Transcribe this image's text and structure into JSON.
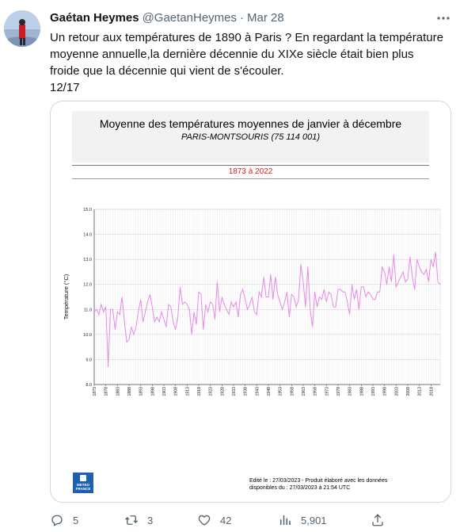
{
  "tweet": {
    "author_name": "Gaétan Heymes",
    "handle": "@GaetanHeymes",
    "separator": "·",
    "date": "Mar 28",
    "more_icon": "more-icon",
    "text_lines": [
      "Un retour aux températures de 1890 à Paris ? En regardant la température",
      "moyenne annuelle,la dernière décennie du XIXe siècle était bien plus",
      "froide que la décennie qui vient de s'écouler.",
      "12/17"
    ]
  },
  "media": {
    "chart_title": "Moyenne des températures moyennes de janvier à décembre",
    "chart_subtitle": "PARIS-MONTSOURIS (75 114 001)",
    "period": "1873 à 2022",
    "footer_line1": "Edité le : 27/03/2023 - Produit élaboré avec les données",
    "footer_line2": "disponibles du : 27/03/2023 à 21:54 UTC",
    "logo_text_1": "METEO",
    "logo_text_2": "FRANCE"
  },
  "chart_data": {
    "type": "line",
    "title": "Moyenne des températures moyennes de janvier à décembre",
    "subtitle": "PARIS-MONTSOURIS (75 114 001)",
    "xlabel": "",
    "ylabel": "Température (°C)",
    "ylim": [
      8.0,
      15.0
    ],
    "xlim": [
      1873,
      2022
    ],
    "grid": true,
    "color": "#e58ae8",
    "y_ticks": [
      "8.0",
      "9.0",
      "10.0",
      "11.0",
      "12.0",
      "13.0",
      "14.0",
      "15.0"
    ],
    "x_tick_labels": [
      "1873",
      "1878",
      "1883",
      "1888",
      "1893",
      "1898",
      "1903",
      "1908",
      "1913",
      "1918",
      "1923",
      "1928",
      "1933",
      "1938",
      "1943",
      "1948",
      "1953",
      "1958",
      "1963",
      "1968",
      "1973",
      "1978",
      "1983",
      "1988",
      "1993",
      "1998",
      "2003",
      "2008",
      "2013",
      "2018"
    ],
    "series": [
      {
        "x_start": 1873,
        "values": [
          10.9,
          11.0,
          10.8,
          11.2,
          10.9,
          11.1,
          8.7,
          11.0,
          11.0,
          10.2,
          10.9,
          10.8,
          11.5,
          10.5,
          9.7,
          9.8,
          10.3,
          10.0,
          10.3,
          10.9,
          11.4,
          10.5,
          10.9,
          11.3,
          11.6,
          11.1,
          10.5,
          10.7,
          10.5,
          10.9,
          10.6,
          10.3,
          11.2,
          11.1,
          10.5,
          10.2,
          10.7,
          11.9,
          11.2,
          11.3,
          11.2,
          11.0,
          10.0,
          10.9,
          10.4,
          11.7,
          11.6,
          10.2,
          11.2,
          10.9,
          11.3,
          11.2,
          10.6,
          12.1,
          10.9,
          11.5,
          11.2,
          11.0,
          10.8,
          11.3,
          11.1,
          11.3,
          10.7,
          11.6,
          11.8,
          11.4,
          11.0,
          11.2,
          11.5,
          10.9,
          10.8,
          11.7,
          11.5,
          12.3,
          11.5,
          11.5,
          12.4,
          11.4,
          12.3,
          11.6,
          11.3,
          11.0,
          11.3,
          11.7,
          10.7,
          11.6,
          11.5,
          11.1,
          11.4,
          12.8,
          12.1,
          11.1,
          12.7,
          11.0,
          10.3,
          11.7,
          11.1,
          11.5,
          11.4,
          11.8,
          11.3,
          11.7,
          11.6,
          11.1,
          11.1,
          11.8,
          11.8,
          11.7,
          11.7,
          11.3,
          10.8,
          12.0,
          11.4,
          11.8,
          11.0,
          11.9,
          11.9,
          11.5,
          11.7,
          11.6,
          11.4,
          11.4,
          11.7,
          11.7,
          12.7,
          12.5,
          12.0,
          12.7,
          12.1,
          13.2,
          11.9,
          12.1,
          12.3,
          12.5,
          12.1,
          12.2,
          13.1,
          12.3,
          11.8,
          13.0,
          12.7,
          12.5,
          12.4,
          12.6,
          12.1,
          13.0,
          12.7,
          13.3,
          12.1,
          12.0
        ]
      }
    ]
  },
  "actions": {
    "replies": "5",
    "retweets": "3",
    "likes": "42",
    "views": "5,901"
  }
}
